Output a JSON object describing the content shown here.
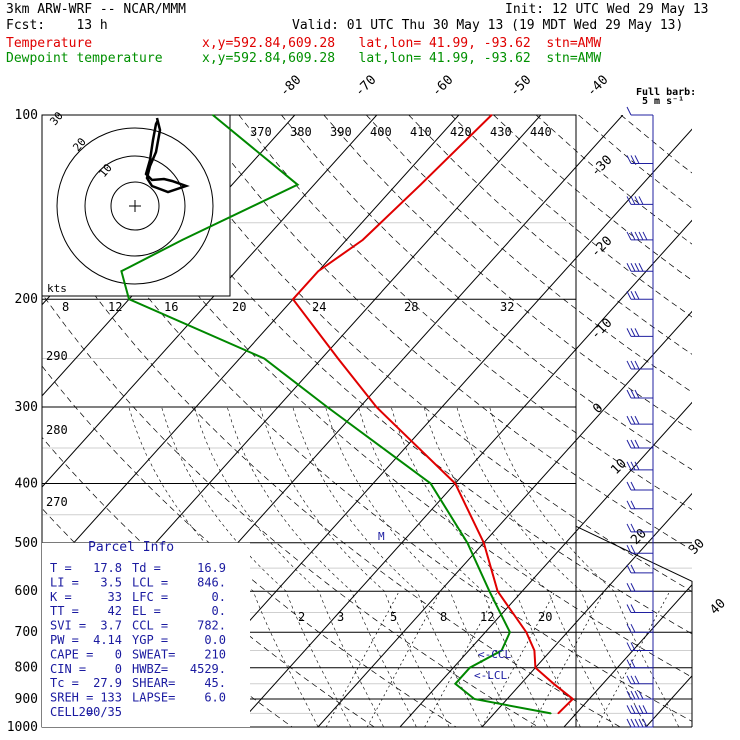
{
  "header": {
    "model": "3km ARW-WRF -- NCAR/MMM",
    "init": "Init: 12 UTC Wed 29 May 13",
    "fcst": "Fcst:    13 h",
    "valid": "Valid: 01 UTC Thu 30 May 13 (19 MDT Wed 29 May 13)",
    "temp_label": "Temperature",
    "temp_loc": "x,y=592.84,609.28   lat,lon= 41.99, -93.62  stn=AMW",
    "dew_label": "Dewpoint temperature",
    "dew_loc": "x,y=592.84,609.28   lat,lon= 41.99, -93.62  stn=AMW",
    "full_barb": "Full barb:",
    "full_barb_units": "5 m s⁻¹"
  },
  "colors": {
    "temperature": "#e00000",
    "dewpoint": "#008800",
    "barbs": "#2020a0",
    "parcel": "#1a1aa0"
  },
  "chart_data": {
    "type": "line",
    "title": "",
    "ylabel": "",
    "xlabel": "",
    "pressure_ticks": [
      "100",
      "200",
      "300",
      "400",
      "500",
      "600",
      "700",
      "800",
      "900",
      "1000"
    ],
    "isotherm_labels": [
      "-80",
      "-70",
      "-60",
      "-50",
      "-40",
      "-30",
      "-20",
      "-10",
      "0",
      "10",
      "20",
      "30",
      "40"
    ],
    "theta_labels": [
      "370",
      "380",
      "390",
      "400",
      "410",
      "420",
      "430",
      "440"
    ],
    "theta_labels_left": [
      "290",
      "280",
      "270"
    ],
    "mixing_ratio_labels": [
      "2",
      "3",
      "5",
      "8",
      "12",
      "20"
    ],
    "hodo_speed_labels": [
      "8",
      "12",
      "16",
      "20",
      "24",
      "28",
      "32"
    ],
    "hodo_units": "kts",
    "hodo_rings": [
      "30",
      "20",
      "10"
    ],
    "series": [
      {
        "name": "Temperature",
        "points": [
          [
            100,
            -56
          ],
          [
            130,
            -57
          ],
          [
            160,
            -58
          ],
          [
            180,
            -60
          ],
          [
            200,
            -60
          ],
          [
            250,
            -48
          ],
          [
            300,
            -38
          ],
          [
            400,
            -20
          ],
          [
            500,
            -10
          ],
          [
            600,
            -3
          ],
          [
            700,
            5
          ],
          [
            750,
            8
          ],
          [
            800,
            10
          ],
          [
            850,
            14
          ],
          [
            900,
            18
          ],
          [
            950,
            17.8
          ]
        ]
      },
      {
        "name": "Dewpoint temperature",
        "points": [
          [
            100,
            -90
          ],
          [
            130,
            -72
          ],
          [
            160,
            -80
          ],
          [
            180,
            -84
          ],
          [
            200,
            -80
          ],
          [
            250,
            -57
          ],
          [
            300,
            -44
          ],
          [
            400,
            -23
          ],
          [
            500,
            -12
          ],
          [
            600,
            -4
          ],
          [
            700,
            3
          ],
          [
            750,
            4
          ],
          [
            800,
            2
          ],
          [
            850,
            2
          ],
          [
            900,
            6
          ],
          [
            950,
            16.9
          ]
        ]
      }
    ],
    "markers": [
      "M",
      "<-CCL",
      "<-LCL"
    ]
  },
  "parcel": {
    "title": "Parcel Info",
    "rows": [
      [
        "T   =",
        "17.8",
        "Td =",
        "16.9"
      ],
      [
        "LI  =",
        "3.5",
        "LCL =",
        "846."
      ],
      [
        "K   =",
        "33",
        "LFC =",
        "0."
      ],
      [
        "TT  =",
        "42",
        "EL  =",
        "0."
      ],
      [
        "SVI =",
        "3.7",
        "CCL =",
        "782."
      ],
      [
        "PW  =",
        "4.14",
        "YGP =",
        "0.0"
      ],
      [
        "CAPE =",
        "0",
        "SWEAT=",
        "210"
      ],
      [
        "CIN  =",
        "0",
        "HWBZ=",
        "4529."
      ],
      [
        "Tc  =",
        "27.9",
        "SHEAR=",
        "45."
      ],
      [
        "SREH =",
        "133",
        "LAPSE=",
        "6.0"
      ],
      [
        "CELL =",
        "200/35",
        "",
        ""
      ]
    ]
  },
  "winds": [
    {
      "p": 100,
      "speed": 5
    },
    {
      "p": 120,
      "speed": 15
    },
    {
      "p": 140,
      "speed": 20
    },
    {
      "p": 160,
      "speed": 25
    },
    {
      "p": 180,
      "speed": 20
    },
    {
      "p": 200,
      "speed": 15
    },
    {
      "p": 230,
      "speed": 15
    },
    {
      "p": 260,
      "speed": 15
    },
    {
      "p": 290,
      "speed": 15
    },
    {
      "p": 320,
      "speed": 15
    },
    {
      "p": 350,
      "speed": 15
    },
    {
      "p": 380,
      "speed": 15
    },
    {
      "p": 410,
      "speed": 10
    },
    {
      "p": 440,
      "speed": 10
    },
    {
      "p": 480,
      "speed": 10
    },
    {
      "p": 520,
      "speed": 10
    },
    {
      "p": 560,
      "speed": 10
    },
    {
      "p": 600,
      "speed": 10
    },
    {
      "p": 650,
      "speed": 10
    },
    {
      "p": 700,
      "speed": 10
    },
    {
      "p": 750,
      "speed": 10
    },
    {
      "p": 800,
      "speed": 10
    },
    {
      "p": 850,
      "speed": 15
    },
    {
      "p": 900,
      "speed": 20
    },
    {
      "p": 950,
      "speed": 25
    },
    {
      "p": 1000,
      "speed": 25
    }
  ]
}
